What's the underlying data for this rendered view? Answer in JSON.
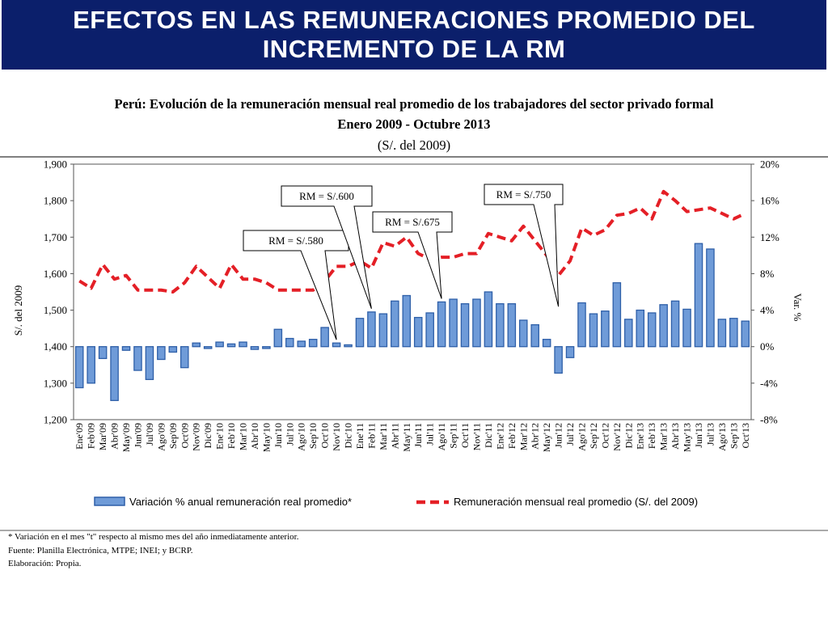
{
  "header": {
    "title": "EFECTOS EN LAS REMUNERACIONES PROMEDIO DEL INCREMENTO DE LA RM"
  },
  "chart_data": {
    "type": "bar+line",
    "title": "Perú: Evolución de la remuneración mensual real promedio de los trabajadores del sector privado formal",
    "subtitle": "Enero 2009 - Octubre 2013",
    "units": "(S/. del 2009)",
    "ylabel_left": "S/. del 2009",
    "ylabel_right": "Var. %",
    "ylim_left": [
      1200,
      1900
    ],
    "yticks_left": [
      "1,200",
      "1,300",
      "1,400",
      "1,500",
      "1,600",
      "1,700",
      "1,800",
      "1,900"
    ],
    "ylim_right": [
      -8,
      20
    ],
    "yticks_right": [
      "-8%",
      "-4%",
      "0%",
      "4%",
      "8%",
      "12%",
      "16%",
      "20%"
    ],
    "categories": [
      "Ene'09",
      "Feb'09",
      "Mar'09",
      "Abr'09",
      "May'09",
      "Jun'09",
      "Jul'09",
      "Ago'09",
      "Sep'09",
      "Oct'09",
      "Nov'09",
      "Dic'09",
      "Ene'10",
      "Feb'10",
      "Mar'10",
      "Abr'10",
      "May'10",
      "Jun'10",
      "Jul'10",
      "Ago'10",
      "Sep'10",
      "Oct'10",
      "Nov'10",
      "Dic'10",
      "Ene'11",
      "Feb'11",
      "Mar'11",
      "Abr'11",
      "May'11",
      "Jun'11",
      "Jul'11",
      "Ago'11",
      "Sep'11",
      "Oct'11",
      "Nov'11",
      "Dic'11",
      "Ene'12",
      "Feb'12",
      "Mar'12",
      "Abr'12",
      "May'12",
      "Jun'12",
      "Jul'12",
      "Ago'12",
      "Sep'12",
      "Oct'12",
      "Nov'12",
      "Dic'12",
      "Ene'13",
      "Feb'13",
      "Mar'13",
      "Abr'13",
      "May'13",
      "Jun'13",
      "Jul'13",
      "Ago'13",
      "Sep'13",
      "Oct'13"
    ],
    "series": [
      {
        "name": "Variación % anual remuneración real promedio*",
        "type": "bar",
        "axis": "right",
        "color": "#6f9bd8",
        "values": [
          -4.5,
          -4.0,
          -1.3,
          -5.9,
          -0.4,
          -2.6,
          -3.6,
          -1.4,
          -0.6,
          -2.3,
          0.4,
          -0.2,
          0.5,
          0.3,
          0.5,
          -0.3,
          -0.2,
          1.9,
          0.9,
          0.6,
          0.8,
          2.1,
          0.4,
          0.2,
          3.1,
          3.8,
          3.6,
          5.0,
          5.6,
          3.2,
          3.7,
          4.9,
          5.2,
          4.7,
          5.2,
          6.0,
          4.7,
          4.7,
          2.9,
          2.4,
          0.8,
          -2.9,
          -1.2,
          4.8,
          3.6,
          3.9,
          7.0,
          3.0,
          4.0,
          3.7,
          4.6,
          5.0,
          4.1,
          11.3,
          10.7,
          3.0,
          3.1,
          2.8
        ]
      },
      {
        "name": "Remuneración mensual real promedio (S/. del 2009)",
        "type": "line",
        "axis": "left",
        "color": "#e41f26",
        "values": [
          1580,
          1560,
          1625,
          1585,
          1595,
          1555,
          1555,
          1555,
          1550,
          1575,
          1620,
          1590,
          1560,
          1625,
          1585,
          1585,
          1575,
          1555,
          1555,
          1555,
          1555,
          1580,
          1620,
          1620,
          1635,
          1615,
          1685,
          1675,
          1700,
          1655,
          1640,
          1645,
          1645,
          1655,
          1655,
          1710,
          1700,
          1690,
          1730,
          1690,
          1650,
          1595,
          1635,
          1725,
          1705,
          1720,
          1760,
          1765,
          1780,
          1750,
          1825,
          1800,
          1770,
          1775,
          1780,
          1765,
          1750,
          1765
        ]
      }
    ],
    "annotations": [
      {
        "text": "RM = S/.580",
        "month": "Nov'10"
      },
      {
        "text": "RM = S/.600",
        "month": "Feb'11"
      },
      {
        "text": "RM = S/.675",
        "month": "Ago'11"
      },
      {
        "text": "RM = S/.750",
        "month": "Jun'12"
      }
    ],
    "legend": "bottom"
  },
  "footnotes": [
    "* Variación en el mes \"t\" respecto al mismo mes del año inmediatamente anterior.",
    "Fuente: Planilla Electrónica, MTPE; INEI; y BCRP.",
    "Elaboración: Propia."
  ]
}
